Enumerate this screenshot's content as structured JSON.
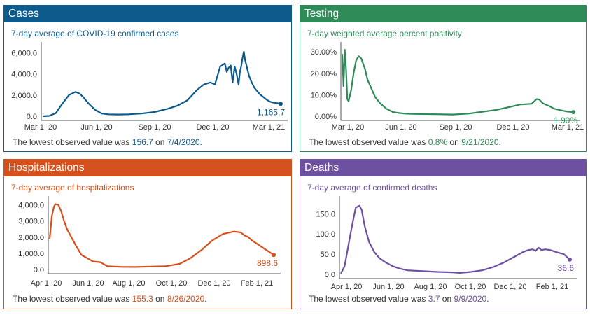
{
  "chart_data": [
    {
      "id": "cases",
      "type": "line",
      "title": "Cases",
      "subtitle": "7-day average of COVID-19 confirmed cases",
      "color": "#0d5a8c",
      "ylim": [
        0,
        6500
      ],
      "y_ticks": [
        0,
        2000,
        4000,
        6000
      ],
      "y_tick_labels": [
        "0.0",
        "2,000.0",
        "4,000.0",
        "6,000.0"
      ],
      "x_tick_labels": [
        "Mar 1, 20",
        "Jun 1, 20",
        "Sep 1, 20",
        "Dec 1, 20",
        "Mar 1, 21"
      ],
      "last_value_label": "1,165.7",
      "note_prefix": "The lowest observed value was ",
      "note_value": "156.7",
      "note_mid": " on ",
      "note_date": "7/4/2020",
      "note_suffix": ".",
      "x": [
        0,
        10,
        20,
        30,
        40,
        50,
        56,
        62,
        70,
        80,
        90,
        100,
        115,
        130,
        150,
        170,
        190,
        205,
        220,
        235,
        245,
        255,
        262,
        270,
        277,
        280,
        283,
        286,
        289,
        292,
        295,
        298,
        300,
        302,
        304,
        306,
        308,
        310,
        312,
        314,
        318,
        322,
        330,
        340,
        345,
        350,
        356,
        362
      ],
      "y": [
        0,
        30,
        300,
        1200,
        2000,
        2300,
        2150,
        1800,
        1200,
        600,
        250,
        180,
        160,
        180,
        250,
        400,
        700,
        1000,
        1500,
        2500,
        3000,
        3200,
        3000,
        4700,
        5000,
        4200,
        4600,
        4800,
        3200,
        4700,
        4000,
        3000,
        4200,
        4700,
        5500,
        6100,
        5300,
        4800,
        4300,
        3800,
        3200,
        2700,
        2100,
        1600,
        1400,
        1300,
        1250,
        1165.7
      ]
    },
    {
      "id": "testing",
      "type": "line",
      "title": "Testing",
      "subtitle": "7-day weighted average percent positivity",
      "color": "#2e8a57",
      "ylim": [
        0,
        32
      ],
      "y_ticks": [
        0,
        10,
        20,
        30
      ],
      "y_tick_labels": [
        "0.00%",
        "10.00%",
        "20.00%",
        "30.00%"
      ],
      "x_tick_labels": [
        "Mar 1, 20",
        "Jun 1, 20",
        "Sep 1, 20",
        "Dec 1, 20",
        "Mar 1, 21"
      ],
      "last_value_label": "1.90%",
      "note_prefix": "The lowest observed value was ",
      "note_value": "0.8%",
      "note_mid": " on ",
      "note_date": "9/21/2020",
      "note_suffix": ".",
      "x": [
        0,
        2,
        4,
        6,
        8,
        10,
        14,
        18,
        22,
        26,
        30,
        36,
        40,
        46,
        52,
        60,
        70,
        80,
        90,
        100,
        110,
        125,
        150,
        175,
        200,
        215,
        230,
        245,
        260,
        275,
        282,
        290,
        300,
        308,
        312,
        318,
        326,
        336,
        346,
        356,
        366
      ],
      "y": [
        29,
        14,
        31,
        22,
        8,
        7,
        12,
        20,
        26,
        28,
        27,
        22,
        17,
        13,
        9,
        6,
        3.5,
        2,
        1.5,
        1.2,
        1.1,
        1,
        0.9,
        0.8,
        1.2,
        1.8,
        2.4,
        3,
        4,
        5,
        5.5,
        5.6,
        5.8,
        8,
        7.8,
        6,
        5,
        3.5,
        2.8,
        2.2,
        1.9
      ]
    },
    {
      "id": "hospitalizations",
      "type": "line",
      "title": "Hospitalizations",
      "subtitle": "7-day average of hospitalizations",
      "color": "#d4501c",
      "ylim": [
        0,
        4200
      ],
      "y_ticks": [
        0,
        1000,
        2000,
        3000,
        4000
      ],
      "y_tick_labels": [
        "0.0",
        "1,000.0",
        "2,000.0",
        "3,000.0",
        "4,000.0"
      ],
      "x_tick_labels": [
        "Apr 1, 20",
        "Jun 1, 20",
        "Aug 1, 20",
        "Oct 1, 20",
        "Dec 1, 20",
        "Feb 1, 21"
      ],
      "last_value_label": "898.6",
      "note_prefix": "The lowest observed value was ",
      "note_value": "155.3",
      "note_mid": " on ",
      "note_date": "8/26/2020",
      "note_suffix": ".",
      "x": [
        0,
        3,
        6,
        8,
        12,
        16,
        20,
        24,
        30,
        36,
        44,
        52,
        60,
        70,
        80,
        100,
        120,
        140,
        160,
        180,
        195,
        210,
        225,
        240,
        255,
        264,
        270,
        275,
        280,
        290,
        300,
        310
      ],
      "y": [
        1900,
        3300,
        3900,
        4050,
        4000,
        3600,
        3000,
        2500,
        2000,
        1500,
        900,
        700,
        500,
        450,
        200,
        160,
        155,
        180,
        200,
        350,
        700,
        1200,
        1800,
        2200,
        2350,
        2300,
        2100,
        2000,
        1800,
        1500,
        1200,
        898.6
      ]
    },
    {
      "id": "deaths",
      "type": "line",
      "title": "Deaths",
      "subtitle": "7-day average of confirmed deaths",
      "color": "#6e50a0",
      "ylim": [
        0,
        180
      ],
      "y_ticks": [
        0,
        50,
        100,
        150
      ],
      "y_tick_labels": [
        "0.0",
        "50.0",
        "100.0",
        "150.0"
      ],
      "x_tick_labels": [
        "Apr 1, 20",
        "Jun 1, 20",
        "Aug 1, 20",
        "Oct 1, 20",
        "Dec 1, 20",
        "Feb 1, 21"
      ],
      "last_value_label": "36.6",
      "note_prefix": "The lowest observed value was ",
      "note_value": "3.7",
      "note_mid": " on ",
      "note_date": "9/9/2020",
      "note_suffix": ".",
      "x": [
        0,
        5,
        10,
        15,
        20,
        25,
        28,
        32,
        38,
        45,
        52,
        60,
        70,
        80,
        90,
        110,
        130,
        150,
        160,
        175,
        190,
        205,
        220,
        235,
        245,
        252,
        258,
        262,
        266,
        270,
        275,
        282,
        290,
        300,
        308
      ],
      "y": [
        2,
        20,
        70,
        120,
        165,
        170,
        160,
        120,
        80,
        55,
        40,
        30,
        20,
        14,
        10,
        8,
        6,
        5,
        3.7,
        6,
        10,
        18,
        30,
        45,
        55,
        60,
        62,
        58,
        66,
        60,
        62,
        60,
        55,
        50,
        36.6
      ]
    }
  ]
}
